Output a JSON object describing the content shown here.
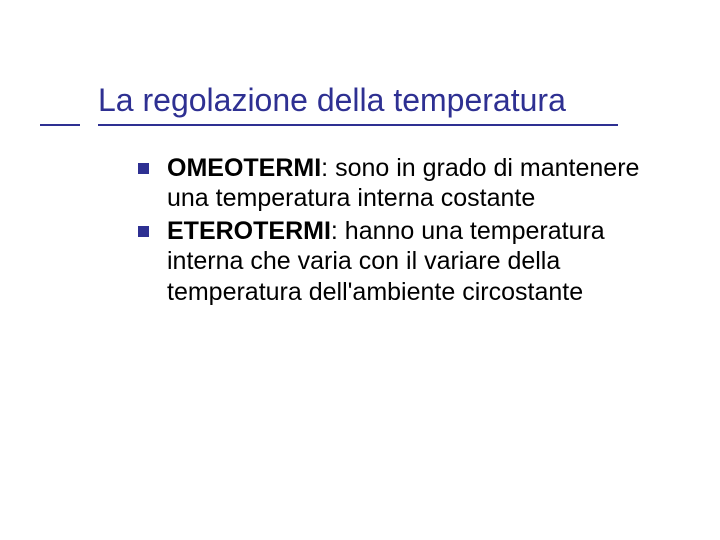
{
  "slide": {
    "title": "La regolazione della temperatura",
    "title_color": "#2e3092",
    "title_fontsize": 32,
    "underline_color": "#2e3092",
    "background_color": "#ffffff",
    "bullets": [
      {
        "bold": "OMEOTERMI",
        "rest": ": sono in grado di mantenere una temperatura interna costante"
      },
      {
        "bold": "ETEROTERMI",
        "rest": ": hanno una temperatura interna che varia con il variare della temperatura dell'ambiente circostante"
      }
    ],
    "bullet_color": "#2e3092",
    "bullet_size": 11,
    "body_fontsize": 25,
    "body_color": "#000000"
  }
}
